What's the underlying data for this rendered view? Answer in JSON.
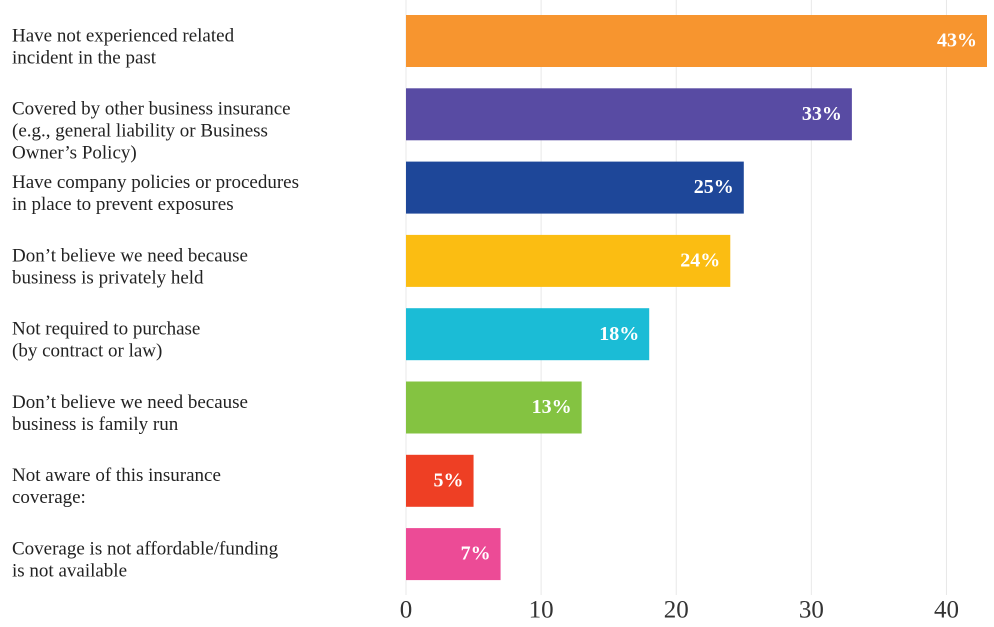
{
  "chart_data": {
    "type": "bar",
    "orientation": "horizontal",
    "categories": [
      [
        "Have not experienced related",
        "incident in the past"
      ],
      [
        "Covered by other business insurance",
        "(e.g., general liability or Business",
        "Owner’s Policy)"
      ],
      [
        "Have company policies or procedures",
        "in place to prevent exposures"
      ],
      [
        "Don’t believe we need because",
        "business is privately held"
      ],
      [
        "Not required to purchase",
        "(by contract or law)"
      ],
      [
        "Don’t believe we need because",
        "business is family run"
      ],
      [
        "Not aware of this insurance",
        "coverage:"
      ],
      [
        "Coverage is not affordable/funding",
        "is not available"
      ]
    ],
    "values": [
      43,
      33,
      25,
      24,
      18,
      13,
      5,
      7
    ],
    "value_labels": [
      "43%",
      "33%",
      "25%",
      "24%",
      "18%",
      "13%",
      "5%",
      "7%"
    ],
    "colors": [
      "#f7952f",
      "#584ba3",
      "#1e4799",
      "#fbbd12",
      "#1bbcd6",
      "#84c341",
      "#ee3f24",
      "#ec4b96"
    ],
    "xlim": [
      0,
      43
    ],
    "xticks": [
      0,
      10,
      20,
      30,
      40
    ],
    "grid": true
  }
}
